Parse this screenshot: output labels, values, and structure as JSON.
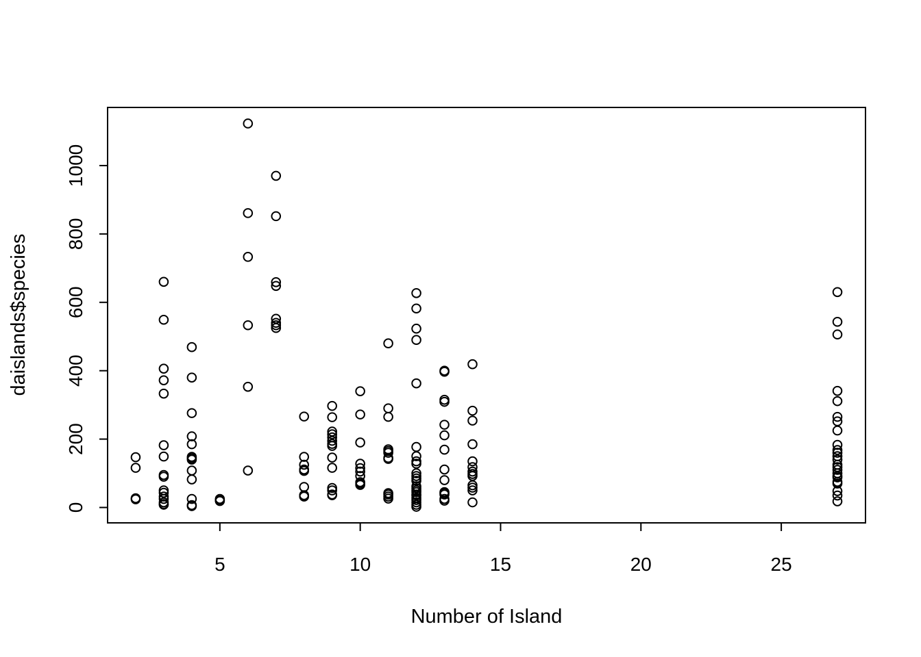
{
  "chart_data": {
    "type": "scatter",
    "title": "",
    "xlabel": "Number of Island",
    "ylabel": "daislands$species",
    "xlim": [
      1.0,
      28.0
    ],
    "ylim": [
      -45,
      1170
    ],
    "xticks": [
      5,
      10,
      15,
      20,
      25
    ],
    "yticks": [
      0,
      200,
      400,
      600,
      800,
      1000
    ],
    "grid": false,
    "legend": "none",
    "marker": "open-circle",
    "x": [
      2,
      2,
      2,
      2,
      3,
      3,
      3,
      3,
      3,
      3,
      3,
      3,
      3,
      3,
      3,
      3,
      3,
      3,
      3,
      3,
      4,
      4,
      4,
      4,
      4,
      4,
      4,
      4,
      4,
      4,
      4,
      4,
      4,
      5,
      5,
      5,
      6,
      6,
      6,
      6,
      6,
      6,
      7,
      7,
      7,
      7,
      7,
      7,
      7,
      7,
      8,
      8,
      8,
      8,
      8,
      8,
      8,
      8,
      9,
      9,
      9,
      9,
      9,
      9,
      9,
      9,
      9,
      9,
      9,
      9,
      9,
      9,
      10,
      10,
      10,
      10,
      10,
      10,
      10,
      10,
      10,
      10,
      11,
      11,
      11,
      11,
      11,
      11,
      11,
      11,
      11,
      11,
      11,
      11,
      12,
      12,
      12,
      12,
      12,
      12,
      12,
      12,
      12,
      12,
      12,
      12,
      12,
      12,
      12,
      12,
      12,
      12,
      12,
      12,
      12,
      12,
      12,
      12,
      13,
      13,
      13,
      13,
      13,
      13,
      13,
      13,
      13,
      13,
      13,
      13,
      13,
      13,
      14,
      14,
      14,
      14,
      14,
      14,
      14,
      14,
      14,
      14,
      14,
      14,
      14,
      27,
      27,
      27,
      27,
      27,
      27,
      27,
      27,
      27,
      27,
      27,
      27,
      27,
      27,
      27,
      27,
      27,
      27,
      27,
      27,
      27,
      27,
      27,
      27
    ],
    "y": [
      147,
      116,
      27,
      24,
      660,
      549,
      406,
      372,
      333,
      182,
      149,
      95,
      90,
      50,
      43,
      32,
      25,
      15,
      10,
      8,
      469,
      380,
      276,
      208,
      185,
      148,
      144,
      140,
      108,
      82,
      25,
      7,
      4,
      25,
      21,
      19,
      1123,
      861,
      733,
      533,
      353,
      108,
      970,
      852,
      659,
      648,
      552,
      540,
      533,
      525,
      266,
      148,
      125,
      111,
      107,
      60,
      36,
      32,
      297,
      264,
      222,
      214,
      205,
      195,
      186,
      180,
      146,
      116,
      57,
      50,
      38,
      36,
      340,
      272,
      190,
      128,
      115,
      105,
      92,
      74,
      70,
      66,
      480,
      290,
      265,
      170,
      165,
      160,
      145,
      142,
      42,
      38,
      32,
      26,
      627,
      582,
      523,
      490,
      363,
      177,
      150,
      135,
      128,
      100,
      92,
      85,
      78,
      62,
      56,
      50,
      45,
      38,
      35,
      28,
      22,
      15,
      8,
      2,
      400,
      397,
      315,
      309,
      242,
      211,
      169,
      111,
      80,
      45,
      42,
      38,
      25,
      20,
      419,
      283,
      254,
      185,
      135,
      118,
      105,
      98,
      92,
      65,
      58,
      50,
      15,
      630,
      543,
      506,
      341,
      311,
      265,
      252,
      225,
      183,
      168,
      160,
      150,
      140,
      125,
      118,
      110,
      100,
      92,
      88,
      75,
      70,
      48,
      35,
      18
    ]
  }
}
